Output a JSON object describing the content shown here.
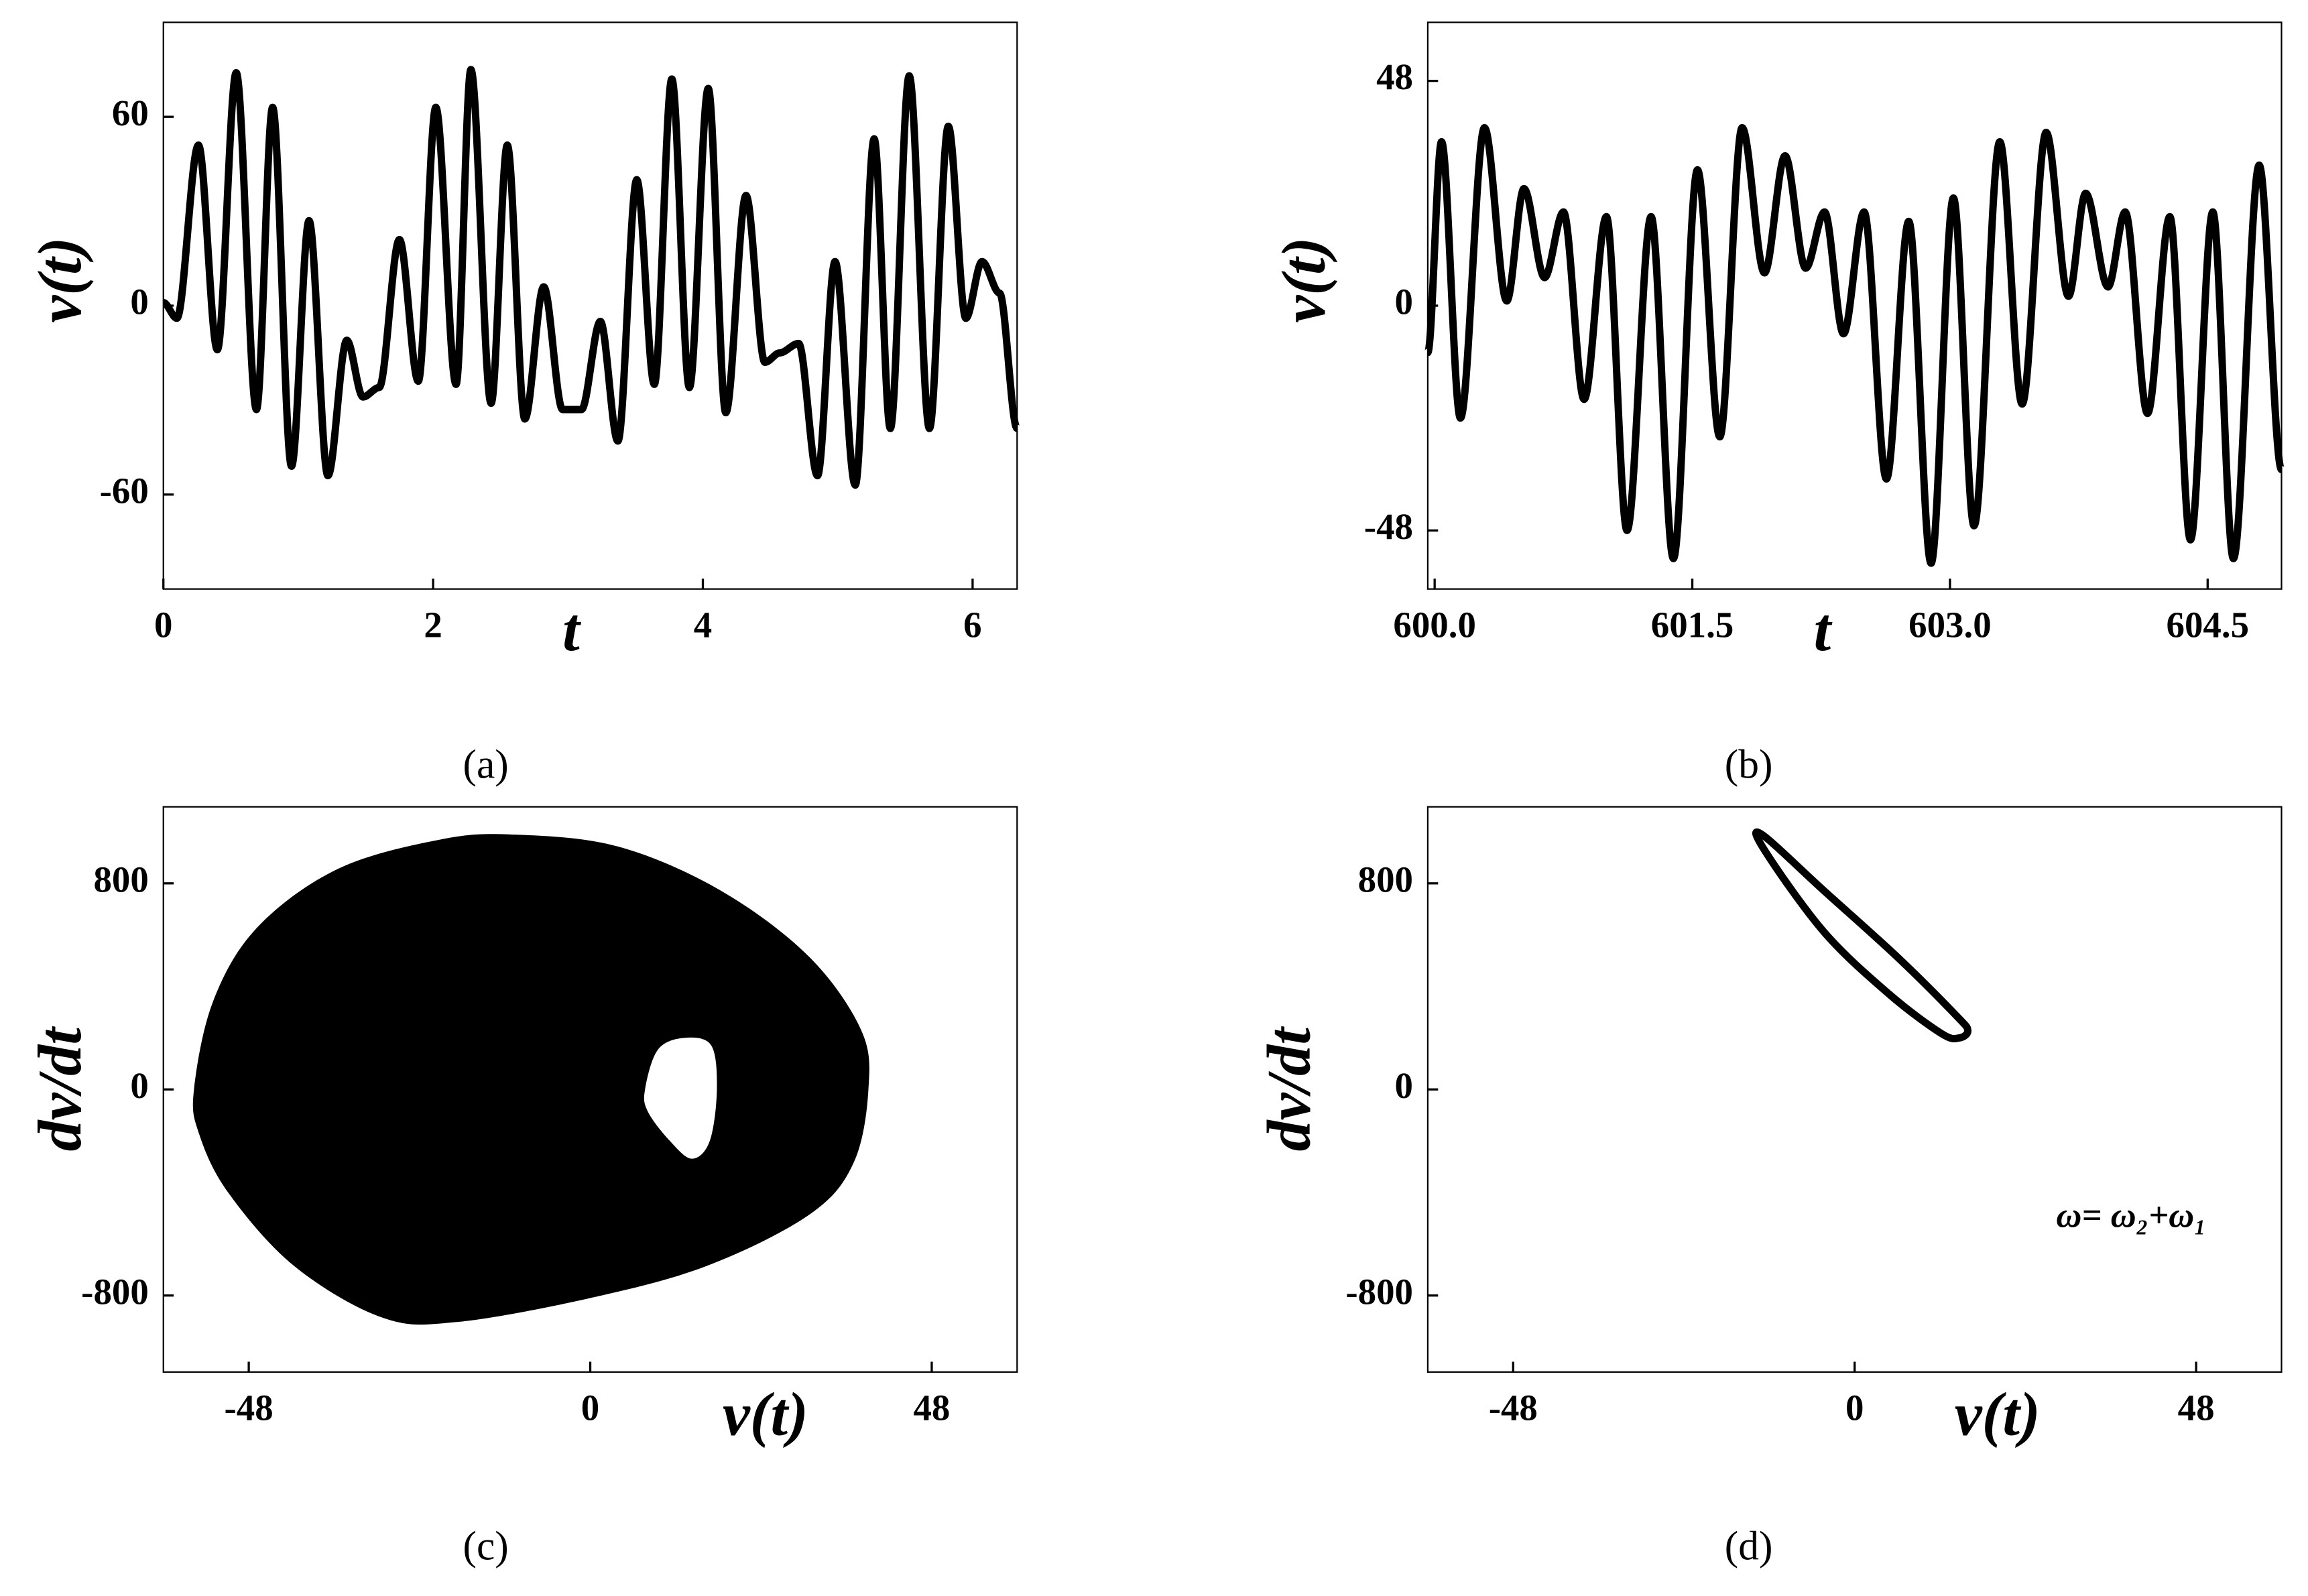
{
  "chart_data": [
    {
      "type": "line",
      "label": "(a)",
      "xlabel": "t",
      "ylabel": "v(t)",
      "x": [
        0,
        0.1,
        0.26,
        0.4,
        0.54,
        0.69,
        0.81,
        0.95,
        1.08,
        1.22,
        1.36,
        1.48,
        1.6,
        1.75,
        1.89,
        2.02,
        2.17,
        2.28,
        2.43,
        2.55,
        2.68,
        2.82,
        2.96,
        3.1,
        3.24,
        3.37,
        3.51,
        3.64,
        3.77,
        3.9,
        4.04,
        4.17,
        4.32,
        4.46,
        4.57,
        4.71,
        4.85,
        4.98,
        5.13,
        5.27,
        5.39,
        5.53,
        5.68,
        5.82,
        5.95,
        6.07,
        6.2,
        6.33
      ],
      "series": [
        {
          "color": "#000000",
          "values": [
            1,
            -4,
            51,
            -14,
            74,
            -33,
            63,
            -51,
            27,
            -54,
            -11,
            -29,
            -26,
            21,
            -24,
            63,
            -25,
            75,
            -31,
            51,
            -36,
            6,
            -33,
            -33,
            -5,
            -43,
            40,
            -25,
            72,
            -26,
            69,
            -34,
            35,
            -18,
            -15,
            -12,
            -54,
            14,
            -57,
            53,
            -39,
            73,
            -39,
            57,
            -4,
            14,
            4,
            -39
          ]
        }
      ],
      "xlim": [
        0,
        6.33
      ],
      "ylim": [
        -90,
        90
      ],
      "xticks": [
        0,
        2,
        4,
        6
      ],
      "yticks": [
        -60,
        0,
        60
      ]
    },
    {
      "type": "line",
      "label": "(b)",
      "xlabel": "t",
      "ylabel": "v(t)",
      "x": [
        599.96,
        600.04,
        600.15,
        600.29,
        600.42,
        600.52,
        600.64,
        600.75,
        600.87,
        601.0,
        601.12,
        601.26,
        601.39,
        601.53,
        601.66,
        601.79,
        601.92,
        602.04,
        602.16,
        602.27,
        602.38,
        602.5,
        602.63,
        602.76,
        602.89,
        603.02,
        603.14,
        603.29,
        603.42,
        603.56,
        603.69,
        603.79,
        603.92,
        604.02,
        604.15,
        604.28,
        604.4,
        604.53,
        604.65,
        604.8,
        604.93
      ],
      "series": [
        {
          "color": "#000000",
          "values": [
            -10,
            35,
            -24,
            38,
            1,
            25,
            6,
            20,
            -20,
            19,
            -48,
            19,
            -54,
            29,
            -28,
            38,
            7,
            32,
            8,
            20,
            -6,
            20,
            -37,
            18,
            -55,
            23,
            -47,
            35,
            -21,
            37,
            2,
            24,
            4,
            20,
            -23,
            19,
            -50,
            20,
            -54,
            30,
            -35
          ]
        }
      ],
      "xlim": [
        599.96,
        604.93
      ],
      "ylim": [
        -60.5,
        60.5
      ],
      "xticks": [
        {
          "value": 600,
          "label": "600.0"
        },
        601.5,
        {
          "value": 603,
          "label": "603.0"
        },
        604.5
      ],
      "yticks": [
        -48,
        0,
        48
      ]
    },
    {
      "type": "area",
      "label": "(c)",
      "xlabel": "v(t)",
      "ylabel": "dv/dt",
      "series": [
        {
          "color": "#000000",
          "x": [
            -55.7,
            -53.0,
            -46.8,
            -35.4,
            -20.9,
            -10.6,
            3.9,
            18.4,
            30.8,
            38.1,
            39.1,
            37.0,
            30.8,
            16.3,
            -0.2,
            -18.8,
            -29.2,
            -41.6,
            -50.9,
            -55.0
          ],
          "y": [
            0,
            343,
            629,
            857,
            971,
            989,
            943,
            771,
            514,
            229,
            0,
            -286,
            -486,
            -686,
            -811,
            -903,
            -886,
            -686,
            -400,
            -171
          ]
        },
        {
          "color": "#ffffff",
          "x": [
            7.7,
            9.5,
            13.2,
            17.0,
            17.8,
            16.8,
            14.3,
            11.2,
            8.1
          ],
          "y": [
            0,
            154,
            200,
            171,
            0,
            -200,
            -269,
            -200,
            -86
          ]
        }
      ],
      "xlim": [
        -60,
        60
      ],
      "ylim": [
        -1097,
        1097
      ],
      "xticks": [
        -48,
        0,
        48
      ],
      "yticks": [
        -800,
        0,
        800
      ]
    },
    {
      "type": "loop",
      "label": "(d)",
      "xlabel": "v(t)",
      "ylabel": "dv/dt",
      "annotation": "ω= ω₂+ω₁",
      "series": [
        {
          "color": "#000000",
          "x": [
            -13.0,
            -4.3,
            6.0,
            14.3,
            15.9,
            14.7,
            12.2,
            4.8,
            -4.3,
            -12.6
          ],
          "y": [
            989,
            771,
            514,
            286,
            229,
            200,
            217,
            371,
            611,
            926
          ]
        }
      ],
      "xlim": [
        -60,
        60
      ],
      "ylim": [
        -1097,
        1097
      ],
      "xticks": [
        -48,
        0,
        48
      ],
      "yticks": [
        -800,
        0,
        800
      ]
    }
  ]
}
